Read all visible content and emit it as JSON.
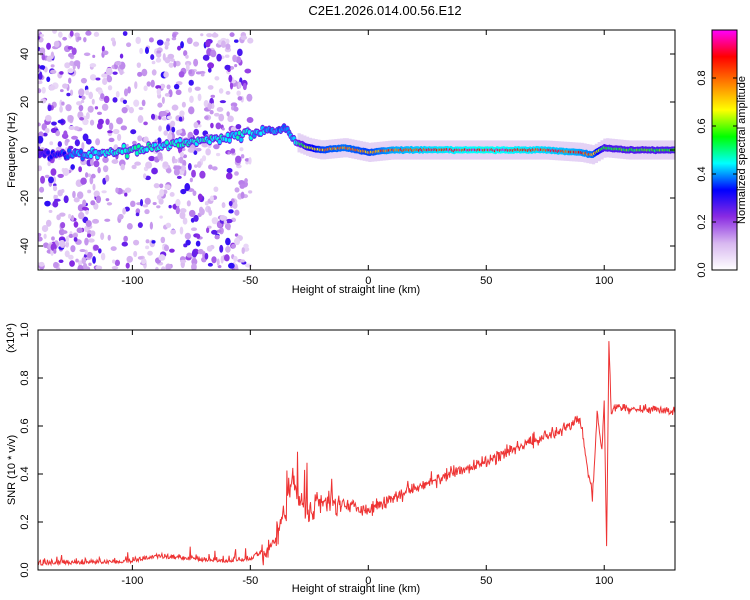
{
  "figure": {
    "title": "C2E1.2026.014.00.56.E12"
  },
  "chart_data": [
    {
      "type": "heatmap",
      "title": "C2E1.2026.014.00.56.E12",
      "xlabel": "Height of straight line (km)",
      "ylabel": "Frequency (Hz)",
      "xlim": [
        -140,
        130
      ],
      "ylim": [
        -50,
        50
      ],
      "xticks": [
        -100,
        -50,
        0,
        50,
        100
      ],
      "yticks": [
        -40,
        -20,
        0,
        20,
        40
      ],
      "colorbar": {
        "label": "Normalized spectral amplitude",
        "range": [
          0.0,
          1.0
        ],
        "ticks": [
          0.0,
          0.2,
          0.4,
          0.6,
          0.8
        ],
        "colors": [
          "#ffffff",
          "#d8b8f0",
          "#8a2be2",
          "#0000ff",
          "#00ffff",
          "#00ff00",
          "#ffff00",
          "#ff8000",
          "#ff0000",
          "#ff00ff"
        ]
      },
      "ridge": {
        "x": [
          -140,
          -120,
          -100,
          -80,
          -60,
          -45,
          -35,
          -30,
          -25,
          -20,
          -10,
          0,
          10,
          25,
          50,
          75,
          90,
          95,
          100,
          110,
          130
        ],
        "y": [
          -1,
          -2,
          0,
          3,
          5,
          8,
          9,
          3,
          1,
          0,
          1,
          -1,
          0,
          0,
          0,
          0,
          -1,
          -2,
          1,
          0,
          0
        ],
        "amplitude": [
          0.3,
          0.45,
          0.5,
          0.5,
          0.5,
          0.45,
          0.4,
          0.5,
          0.7,
          0.8,
          0.85,
          0.8,
          0.9,
          0.95,
          1.0,
          0.95,
          0.9,
          0.85,
          0.6,
          0.6,
          0.6
        ]
      }
    },
    {
      "type": "line",
      "xlabel": "Height of straight line (km)",
      "ylabel": "SNR (10 * v/v)",
      "y_multiplier_label": "(x10⁴)",
      "xlim": [
        -140,
        130
      ],
      "ylim": [
        0,
        1.0
      ],
      "xticks": [
        -100,
        -50,
        0,
        50,
        100
      ],
      "yticks": [
        0.0,
        0.2,
        0.4,
        0.6,
        0.8,
        1.0
      ],
      "color": "#ee3333",
      "series": [
        {
          "x": [
            -140,
            -100,
            -90,
            -60,
            -50,
            -40,
            -35,
            -32,
            -30,
            -25,
            -20,
            -10,
            0,
            10,
            20,
            30,
            50,
            70,
            85,
            90,
            95,
            97,
            99,
            100,
            101,
            102,
            103,
            105,
            110,
            120,
            130
          ],
          "y": [
            0.02,
            0.03,
            0.05,
            0.03,
            0.04,
            0.1,
            0.25,
            0.4,
            0.3,
            0.25,
            0.28,
            0.28,
            0.25,
            0.3,
            0.35,
            0.38,
            0.45,
            0.54,
            0.6,
            0.63,
            0.3,
            0.65,
            0.5,
            0.7,
            0.1,
            0.95,
            0.66,
            0.68,
            0.67,
            0.67,
            0.66
          ]
        }
      ]
    }
  ]
}
